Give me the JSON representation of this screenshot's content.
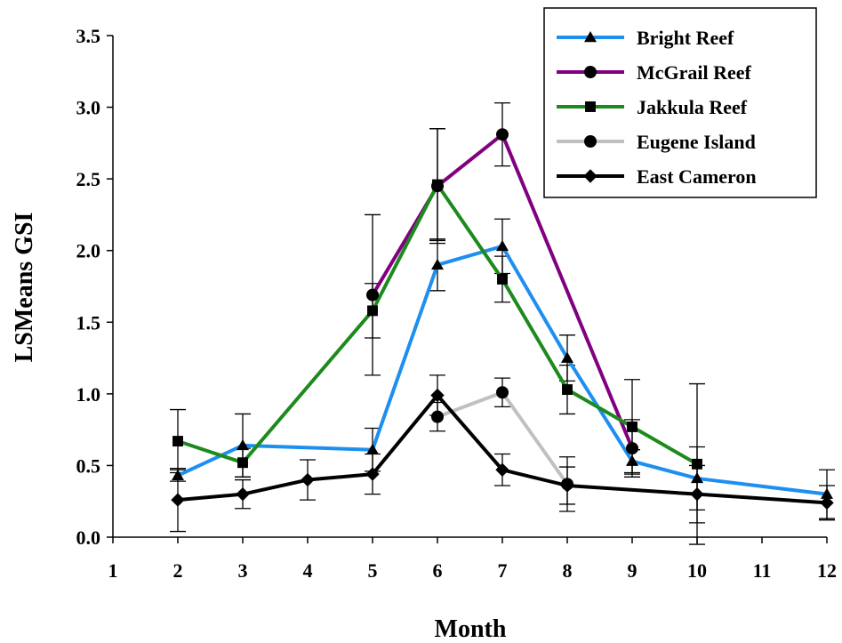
{
  "chart_data": {
    "type": "line",
    "xlabel": "Month",
    "ylabel": "LSMeans GSI",
    "xlim": [
      1,
      12
    ],
    "ylim": [
      0,
      3.5
    ],
    "x_ticks": [
      "1",
      "2",
      "3",
      "4",
      "5",
      "6",
      "7",
      "8",
      "9",
      "10",
      "11",
      "12"
    ],
    "y_ticks": [
      "0.0",
      "0.5",
      "1.0",
      "1.5",
      "2.0",
      "2.5",
      "3.0",
      "3.5"
    ],
    "legend_position": "top-right",
    "grid": false,
    "series": [
      {
        "name": "Bright Reef",
        "color": "#1E8FEF",
        "marker": "triangle",
        "points": [
          {
            "x": 2,
            "y": 0.43,
            "err": 0.04
          },
          {
            "x": 3,
            "y": 0.64,
            "err": 0.22
          },
          {
            "x": 5,
            "y": 0.61,
            "err": 0.15
          },
          {
            "x": 6,
            "y": 1.9,
            "err": 0.18
          },
          {
            "x": 7,
            "y": 2.03,
            "err": 0.19
          },
          {
            "x": 8,
            "y": 1.25,
            "err": 0.16
          },
          {
            "x": 9,
            "y": 0.53,
            "err": 0.08
          },
          {
            "x": 10,
            "y": 0.41,
            "err": 0.22
          },
          {
            "x": 12,
            "y": 0.3,
            "err": 0.17
          }
        ]
      },
      {
        "name": "McGrail Reef",
        "color": "#800080",
        "marker": "circle",
        "points": [
          {
            "x": 5,
            "y": 1.69,
            "err": 0.56
          },
          {
            "x": 6,
            "y": 2.45,
            "err": 0.4
          },
          {
            "x": 7,
            "y": 2.81,
            "err": 0.22
          },
          {
            "x": 9,
            "y": 0.62,
            "err": 0.2
          }
        ]
      },
      {
        "name": "Jakkula Reef",
        "color": "#1D8A1D",
        "marker": "square",
        "points": [
          {
            "x": 2,
            "y": 0.67,
            "err": 0.22
          },
          {
            "x": 3,
            "y": 0.52,
            "err": 0.1
          },
          {
            "x": 5,
            "y": 1.58,
            "err": 0.19
          },
          {
            "x": 6,
            "y": 2.46,
            "err": 0.39
          },
          {
            "x": 7,
            "y": 1.8,
            "err": 0.16
          },
          {
            "x": 8,
            "y": 1.03,
            "err": 0.17
          },
          {
            "x": 9,
            "y": 0.77,
            "err": 0.33
          },
          {
            "x": 10,
            "y": 0.51,
            "err": 0.56
          }
        ]
      },
      {
        "name": "Eugene Island",
        "color": "#C0C0C0",
        "marker": "circle",
        "points": [
          {
            "x": 6,
            "y": 0.84,
            "err": 0.1
          },
          {
            "x": 7,
            "y": 1.01,
            "err": 0.1
          },
          {
            "x": 8,
            "y": 0.37,
            "err": 0.19
          }
        ]
      },
      {
        "name": "East Cameron",
        "color": "#000000",
        "marker": "diamond",
        "points": [
          {
            "x": 2,
            "y": 0.26,
            "err": 0.22
          },
          {
            "x": 3,
            "y": 0.3,
            "err": 0.1
          },
          {
            "x": 4,
            "y": 0.4,
            "err": 0.14
          },
          {
            "x": 5,
            "y": 0.44,
            "err": 0.14
          },
          {
            "x": 6,
            "y": 0.99,
            "err": 0.14
          },
          {
            "x": 7,
            "y": 0.47,
            "err": 0.11
          },
          {
            "x": 8,
            "y": 0.36,
            "err": 0.13
          },
          {
            "x": 10,
            "y": 0.3,
            "err": 0.2
          },
          {
            "x": 12,
            "y": 0.24,
            "err": 0.12
          }
        ]
      }
    ]
  }
}
